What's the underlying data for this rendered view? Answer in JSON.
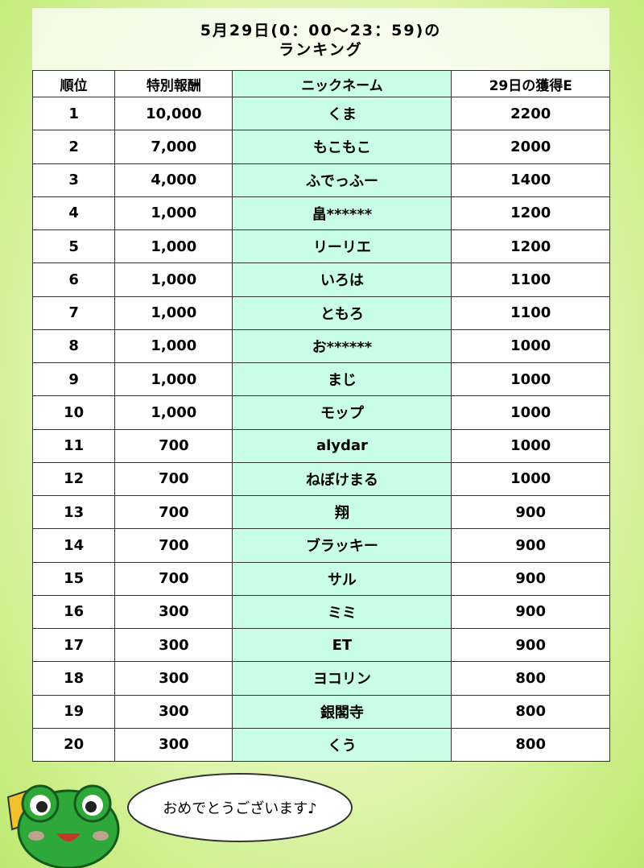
{
  "header": {
    "title_line1": "5月29日(0：00～23：59)の",
    "title_line2": "ランキング"
  },
  "table": {
    "columns": [
      "順位",
      "特別報酬",
      "ニックネーム",
      "29日の獲得E"
    ],
    "rows": [
      [
        "1",
        "10,000",
        "くま",
        "2200"
      ],
      [
        "2",
        "7,000",
        "もこもこ",
        "2000"
      ],
      [
        "3",
        "4,000",
        "ふでっふー",
        "1400"
      ],
      [
        "4",
        "1,000",
        "畠******",
        "1200"
      ],
      [
        "5",
        "1,000",
        "リーリエ",
        "1200"
      ],
      [
        "6",
        "1,000",
        "いろは",
        "1100"
      ],
      [
        "7",
        "1,000",
        "ともろ",
        "1100"
      ],
      [
        "8",
        "1,000",
        "お******",
        "1000"
      ],
      [
        "9",
        "1,000",
        "まじ",
        "1000"
      ],
      [
        "10",
        "1,000",
        "モップ",
        "1000"
      ],
      [
        "11",
        "700",
        "alydar",
        "1000"
      ],
      [
        "12",
        "700",
        "ねぼけまる",
        "1000"
      ],
      [
        "13",
        "700",
        "翔",
        "900"
      ],
      [
        "14",
        "700",
        "ブラッキー",
        "900"
      ],
      [
        "15",
        "700",
        "サル",
        "900"
      ],
      [
        "16",
        "300",
        "ミミ",
        "900"
      ],
      [
        "17",
        "300",
        "ET",
        "900"
      ],
      [
        "18",
        "300",
        "ヨコリン",
        "800"
      ],
      [
        "19",
        "300",
        "銀閣寺",
        "800"
      ],
      [
        "20",
        "300",
        "くう",
        "800"
      ]
    ]
  },
  "bubble": {
    "text": "おめでとうございます♪"
  }
}
